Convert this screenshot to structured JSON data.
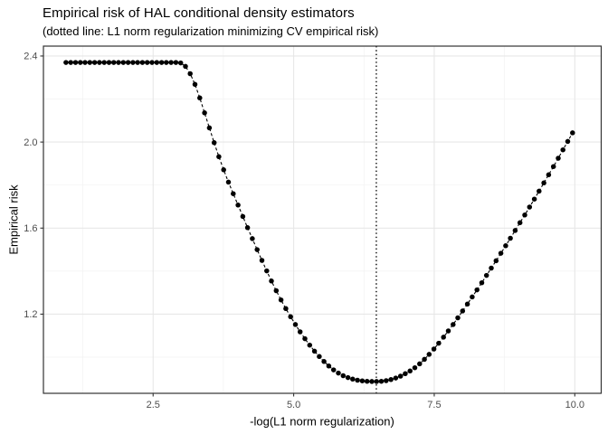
{
  "header": {
    "title": "Empirical risk of HAL conditional density estimators",
    "subtitle": "(dotted line: L1 norm regularization minimizing CV empirical risk)"
  },
  "chart_data": {
    "type": "scatter",
    "title": "Empirical risk of HAL conditional density estimators",
    "subtitle": "(dotted line: L1 norm regularization minimizing CV empirical risk)",
    "xlabel": "-log(L1 norm regularization)",
    "ylabel": "Empirical risk",
    "x_ticks": [
      2.5,
      5.0,
      7.5,
      10.0
    ],
    "x_tick_labels": [
      "2.5",
      "5.0",
      "7.5",
      "10.0"
    ],
    "y_ticks": [
      1.2,
      1.6,
      2.0,
      2.4
    ],
    "y_tick_labels": [
      "1.2",
      "1.6",
      "2.0",
      "2.4"
    ],
    "x_minor": [
      1.25,
      3.75,
      6.25,
      8.75
    ],
    "y_minor": [
      1.0,
      1.4,
      1.8,
      2.2
    ],
    "xlim": [
      0.549,
      10.47
    ],
    "ylim": [
      0.832,
      2.446
    ],
    "grid": true,
    "legend": "none",
    "vline_x": 6.47,
    "line_style": "dashed",
    "vline_style": "dotted",
    "points": [
      [
        0.95,
        2.37
      ],
      [
        1.035,
        2.37
      ],
      [
        1.12,
        2.37
      ],
      [
        1.205,
        2.37
      ],
      [
        1.29,
        2.37
      ],
      [
        1.375,
        2.37
      ],
      [
        1.46,
        2.37
      ],
      [
        1.545,
        2.37
      ],
      [
        1.63,
        2.37
      ],
      [
        1.715,
        2.37
      ],
      [
        1.8,
        2.37
      ],
      [
        1.885,
        2.37
      ],
      [
        1.97,
        2.37
      ],
      [
        2.055,
        2.37
      ],
      [
        2.14,
        2.37
      ],
      [
        2.225,
        2.37
      ],
      [
        2.31,
        2.37
      ],
      [
        2.395,
        2.37
      ],
      [
        2.48,
        2.37
      ],
      [
        2.565,
        2.37
      ],
      [
        2.65,
        2.37
      ],
      [
        2.735,
        2.37
      ],
      [
        2.82,
        2.37
      ],
      [
        2.905,
        2.37
      ],
      [
        2.99,
        2.368
      ],
      [
        3.075,
        2.352
      ],
      [
        3.16,
        2.318
      ],
      [
        3.245,
        2.268
      ],
      [
        3.33,
        2.205
      ],
      [
        3.415,
        2.136
      ],
      [
        3.5,
        2.066
      ],
      [
        3.585,
        1.997
      ],
      [
        3.67,
        1.932
      ],
      [
        3.755,
        1.871
      ],
      [
        3.84,
        1.814
      ],
      [
        3.925,
        1.76
      ],
      [
        4.01,
        1.707
      ],
      [
        4.095,
        1.654
      ],
      [
        4.18,
        1.602
      ],
      [
        4.265,
        1.551
      ],
      [
        4.35,
        1.5
      ],
      [
        4.435,
        1.45
      ],
      [
        4.52,
        1.401
      ],
      [
        4.605,
        1.354
      ],
      [
        4.69,
        1.309
      ],
      [
        4.775,
        1.266
      ],
      [
        4.86,
        1.226
      ],
      [
        4.945,
        1.188
      ],
      [
        5.03,
        1.152
      ],
      [
        5.115,
        1.118
      ],
      [
        5.2,
        1.086
      ],
      [
        5.285,
        1.056
      ],
      [
        5.37,
        1.028
      ],
      [
        5.455,
        1.003
      ],
      [
        5.54,
        0.98
      ],
      [
        5.625,
        0.959
      ],
      [
        5.71,
        0.941
      ],
      [
        5.795,
        0.926
      ],
      [
        5.88,
        0.914
      ],
      [
        5.965,
        0.905
      ],
      [
        6.05,
        0.898
      ],
      [
        6.135,
        0.893
      ],
      [
        6.22,
        0.89
      ],
      [
        6.305,
        0.888
      ],
      [
        6.39,
        0.887
      ],
      [
        6.475,
        0.887
      ],
      [
        6.56,
        0.888
      ],
      [
        6.645,
        0.891
      ],
      [
        6.73,
        0.896
      ],
      [
        6.815,
        0.903
      ],
      [
        6.9,
        0.912
      ],
      [
        6.985,
        0.923
      ],
      [
        7.07,
        0.936
      ],
      [
        7.155,
        0.951
      ],
      [
        7.24,
        0.969
      ],
      [
        7.325,
        0.99
      ],
      [
        7.41,
        1.013
      ],
      [
        7.495,
        1.038
      ],
      [
        7.58,
        1.065
      ],
      [
        7.665,
        1.093
      ],
      [
        7.75,
        1.122
      ],
      [
        7.835,
        1.152
      ],
      [
        7.92,
        1.183
      ],
      [
        8.005,
        1.215
      ],
      [
        8.09,
        1.247
      ],
      [
        8.175,
        1.28
      ],
      [
        8.26,
        1.313
      ],
      [
        8.345,
        1.346
      ],
      [
        8.43,
        1.38
      ],
      [
        8.515,
        1.414
      ],
      [
        8.6,
        1.448
      ],
      [
        8.685,
        1.483
      ],
      [
        8.77,
        1.518
      ],
      [
        8.855,
        1.553
      ],
      [
        8.94,
        1.589
      ],
      [
        9.025,
        1.625
      ],
      [
        9.11,
        1.661
      ],
      [
        9.195,
        1.698
      ],
      [
        9.28,
        1.735
      ],
      [
        9.365,
        1.772
      ],
      [
        9.45,
        1.81
      ],
      [
        9.535,
        1.848
      ],
      [
        9.62,
        1.886
      ],
      [
        9.705,
        1.925
      ],
      [
        9.79,
        1.964
      ],
      [
        9.875,
        2.003
      ],
      [
        9.96,
        2.043
      ]
    ]
  },
  "style": {
    "background": "#ffffff",
    "grid_major": "#e7e7e7",
    "grid_minor": "#f2f2f2",
    "panel_border": "#333333",
    "tick_label_color": "#4d4d4d",
    "text_color": "#000000",
    "point_color": "#000000",
    "line_color": "#000000",
    "vline_color": "#000000"
  }
}
